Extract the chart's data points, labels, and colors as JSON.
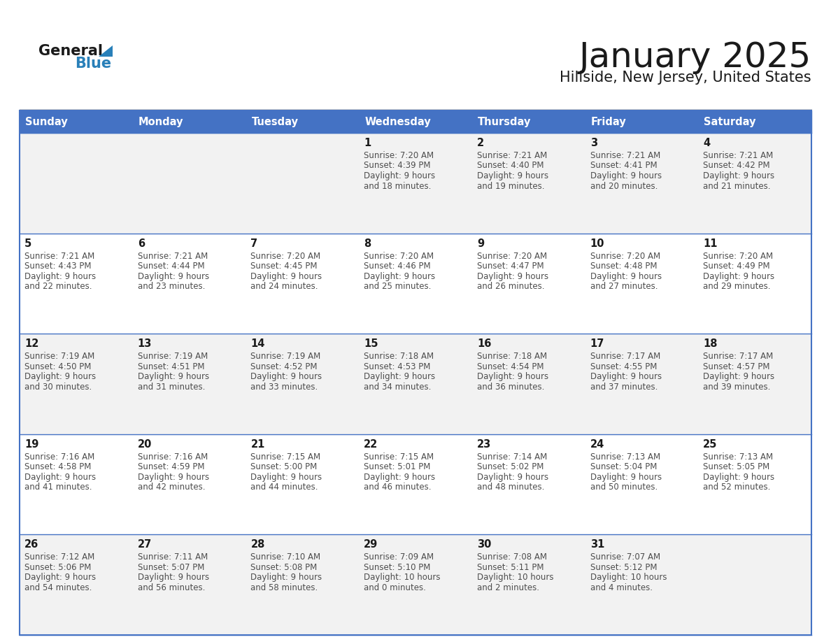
{
  "title": "January 2025",
  "subtitle": "Hillside, New Jersey, United States",
  "days_of_week": [
    "Sunday",
    "Monday",
    "Tuesday",
    "Wednesday",
    "Thursday",
    "Friday",
    "Saturday"
  ],
  "header_bg": "#4472C4",
  "header_text": "#FFFFFF",
  "cell_bg_row0": "#F2F2F2",
  "cell_bg_row1": "#FFFFFF",
  "cell_bg_row2": "#F2F2F2",
  "cell_bg_row3": "#FFFFFF",
  "cell_bg_row4": "#F2F2F2",
  "cell_border": "#4472C4",
  "title_color": "#1a1a1a",
  "subtitle_color": "#1a1a1a",
  "day_num_color": "#1a1a1a",
  "cell_text_color": "#4d4d4d",
  "logo_general_color": "#1a1a1a",
  "logo_blue_color": "#2980B9",
  "calendar_data": [
    [
      {
        "day": "",
        "lines": []
      },
      {
        "day": "",
        "lines": []
      },
      {
        "day": "",
        "lines": []
      },
      {
        "day": "1",
        "lines": [
          "Sunrise: 7:20 AM",
          "Sunset: 4:39 PM",
          "Daylight: 9 hours",
          "and 18 minutes."
        ]
      },
      {
        "day": "2",
        "lines": [
          "Sunrise: 7:21 AM",
          "Sunset: 4:40 PM",
          "Daylight: 9 hours",
          "and 19 minutes."
        ]
      },
      {
        "day": "3",
        "lines": [
          "Sunrise: 7:21 AM",
          "Sunset: 4:41 PM",
          "Daylight: 9 hours",
          "and 20 minutes."
        ]
      },
      {
        "day": "4",
        "lines": [
          "Sunrise: 7:21 AM",
          "Sunset: 4:42 PM",
          "Daylight: 9 hours",
          "and 21 minutes."
        ]
      }
    ],
    [
      {
        "day": "5",
        "lines": [
          "Sunrise: 7:21 AM",
          "Sunset: 4:43 PM",
          "Daylight: 9 hours",
          "and 22 minutes."
        ]
      },
      {
        "day": "6",
        "lines": [
          "Sunrise: 7:21 AM",
          "Sunset: 4:44 PM",
          "Daylight: 9 hours",
          "and 23 minutes."
        ]
      },
      {
        "day": "7",
        "lines": [
          "Sunrise: 7:20 AM",
          "Sunset: 4:45 PM",
          "Daylight: 9 hours",
          "and 24 minutes."
        ]
      },
      {
        "day": "8",
        "lines": [
          "Sunrise: 7:20 AM",
          "Sunset: 4:46 PM",
          "Daylight: 9 hours",
          "and 25 minutes."
        ]
      },
      {
        "day": "9",
        "lines": [
          "Sunrise: 7:20 AM",
          "Sunset: 4:47 PM",
          "Daylight: 9 hours",
          "and 26 minutes."
        ]
      },
      {
        "day": "10",
        "lines": [
          "Sunrise: 7:20 AM",
          "Sunset: 4:48 PM",
          "Daylight: 9 hours",
          "and 27 minutes."
        ]
      },
      {
        "day": "11",
        "lines": [
          "Sunrise: 7:20 AM",
          "Sunset: 4:49 PM",
          "Daylight: 9 hours",
          "and 29 minutes."
        ]
      }
    ],
    [
      {
        "day": "12",
        "lines": [
          "Sunrise: 7:19 AM",
          "Sunset: 4:50 PM",
          "Daylight: 9 hours",
          "and 30 minutes."
        ]
      },
      {
        "day": "13",
        "lines": [
          "Sunrise: 7:19 AM",
          "Sunset: 4:51 PM",
          "Daylight: 9 hours",
          "and 31 minutes."
        ]
      },
      {
        "day": "14",
        "lines": [
          "Sunrise: 7:19 AM",
          "Sunset: 4:52 PM",
          "Daylight: 9 hours",
          "and 33 minutes."
        ]
      },
      {
        "day": "15",
        "lines": [
          "Sunrise: 7:18 AM",
          "Sunset: 4:53 PM",
          "Daylight: 9 hours",
          "and 34 minutes."
        ]
      },
      {
        "day": "16",
        "lines": [
          "Sunrise: 7:18 AM",
          "Sunset: 4:54 PM",
          "Daylight: 9 hours",
          "and 36 minutes."
        ]
      },
      {
        "day": "17",
        "lines": [
          "Sunrise: 7:17 AM",
          "Sunset: 4:55 PM",
          "Daylight: 9 hours",
          "and 37 minutes."
        ]
      },
      {
        "day": "18",
        "lines": [
          "Sunrise: 7:17 AM",
          "Sunset: 4:57 PM",
          "Daylight: 9 hours",
          "and 39 minutes."
        ]
      }
    ],
    [
      {
        "day": "19",
        "lines": [
          "Sunrise: 7:16 AM",
          "Sunset: 4:58 PM",
          "Daylight: 9 hours",
          "and 41 minutes."
        ]
      },
      {
        "day": "20",
        "lines": [
          "Sunrise: 7:16 AM",
          "Sunset: 4:59 PM",
          "Daylight: 9 hours",
          "and 42 minutes."
        ]
      },
      {
        "day": "21",
        "lines": [
          "Sunrise: 7:15 AM",
          "Sunset: 5:00 PM",
          "Daylight: 9 hours",
          "and 44 minutes."
        ]
      },
      {
        "day": "22",
        "lines": [
          "Sunrise: 7:15 AM",
          "Sunset: 5:01 PM",
          "Daylight: 9 hours",
          "and 46 minutes."
        ]
      },
      {
        "day": "23",
        "lines": [
          "Sunrise: 7:14 AM",
          "Sunset: 5:02 PM",
          "Daylight: 9 hours",
          "and 48 minutes."
        ]
      },
      {
        "day": "24",
        "lines": [
          "Sunrise: 7:13 AM",
          "Sunset: 5:04 PM",
          "Daylight: 9 hours",
          "and 50 minutes."
        ]
      },
      {
        "day": "25",
        "lines": [
          "Sunrise: 7:13 AM",
          "Sunset: 5:05 PM",
          "Daylight: 9 hours",
          "and 52 minutes."
        ]
      }
    ],
    [
      {
        "day": "26",
        "lines": [
          "Sunrise: 7:12 AM",
          "Sunset: 5:06 PM",
          "Daylight: 9 hours",
          "and 54 minutes."
        ]
      },
      {
        "day": "27",
        "lines": [
          "Sunrise: 7:11 AM",
          "Sunset: 5:07 PM",
          "Daylight: 9 hours",
          "and 56 minutes."
        ]
      },
      {
        "day": "28",
        "lines": [
          "Sunrise: 7:10 AM",
          "Sunset: 5:08 PM",
          "Daylight: 9 hours",
          "and 58 minutes."
        ]
      },
      {
        "day": "29",
        "lines": [
          "Sunrise: 7:09 AM",
          "Sunset: 5:10 PM",
          "Daylight: 10 hours",
          "and 0 minutes."
        ]
      },
      {
        "day": "30",
        "lines": [
          "Sunrise: 7:08 AM",
          "Sunset: 5:11 PM",
          "Daylight: 10 hours",
          "and 2 minutes."
        ]
      },
      {
        "day": "31",
        "lines": [
          "Sunrise: 7:07 AM",
          "Sunset: 5:12 PM",
          "Daylight: 10 hours",
          "and 4 minutes."
        ]
      },
      {
        "day": "",
        "lines": []
      }
    ]
  ]
}
